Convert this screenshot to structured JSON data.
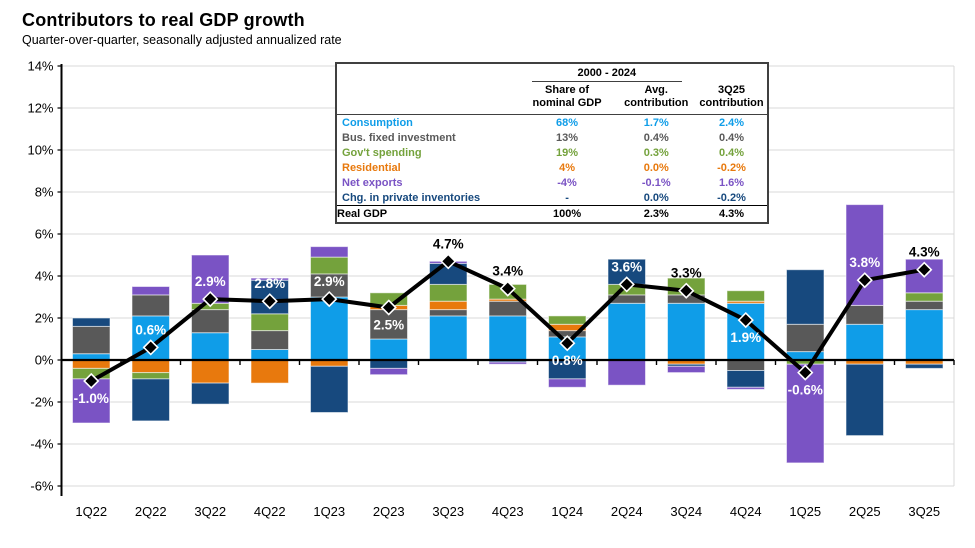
{
  "title": "Contributors to real GDP growth",
  "subtitle": "Quarter-over-quarter, seasonally adjusted annualized rate",
  "colors": {
    "consumption": "#0F9DE8",
    "bus_fixed": "#595959",
    "residential": "#E8790D",
    "govt": "#74A23C",
    "inventories": "#17497E",
    "net_exports": "#7A53C4",
    "gdp_line": "#000000",
    "gridline": "#D9D9D9",
    "axis": "#000000",
    "label_white": "#FFFFFF",
    "label_black": "#000000"
  },
  "table": {
    "group_header": "2000 - 2024",
    "col_headers": [
      "Share of\nnominal GDP",
      "Avg.\ncontribution",
      "3Q25\ncontribution"
    ],
    "rows": [
      {
        "label": "Consumption",
        "series": "consumption",
        "share": "68%",
        "avg": "1.7%",
        "q3": "2.4%"
      },
      {
        "label": "Bus. fixed investment",
        "series": "bus_fixed",
        "share": "13%",
        "avg": "0.4%",
        "q3": "0.4%"
      },
      {
        "label": "Gov't spending",
        "series": "govt",
        "share": "19%",
        "avg": "0.3%",
        "q3": "0.4%"
      },
      {
        "label": "Residential",
        "series": "residential",
        "share": "4%",
        "avg": "0.0%",
        "q3": "-0.2%"
      },
      {
        "label": "Net exports",
        "series": "net_exports",
        "share": "-4%",
        "avg": "-0.1%",
        "q3": "1.6%"
      },
      {
        "label": "Chg. in private inventories",
        "series": "inventories",
        "share": "-",
        "avg": "0.0%",
        "q3": "-0.2%"
      }
    ],
    "total_row": {
      "label": "Real GDP",
      "share": "100%",
      "avg": "2.3%",
      "q3": "4.3%"
    }
  },
  "chart_data": {
    "type": "bar",
    "subtype": "stacked-bars-with-line",
    "title": "Contributors to real GDP growth",
    "xlabel": "",
    "ylabel": "",
    "ylim": [
      -6,
      14
    ],
    "ytick_step": 2,
    "grid": true,
    "ytick_labels": [
      "14%",
      "12%",
      "10%",
      "8%",
      "6%",
      "4%",
      "2%",
      "0%",
      "-2%",
      "-4%",
      "-6%"
    ],
    "categories": [
      "1Q22",
      "2Q22",
      "3Q22",
      "4Q22",
      "1Q23",
      "2Q23",
      "3Q23",
      "4Q23",
      "1Q24",
      "2Q24",
      "3Q24",
      "4Q24",
      "1Q25",
      "2Q25",
      "3Q25"
    ],
    "series": [
      {
        "name": "Consumption",
        "key": "consumption",
        "values": [
          0.3,
          2.1,
          1.3,
          0.5,
          3.0,
          1.0,
          2.1,
          2.1,
          1.1,
          2.7,
          2.7,
          2.7,
          0.4,
          1.7,
          2.4
        ]
      },
      {
        "name": "Bus. fixed investment",
        "key": "bus_fixed",
        "values": [
          1.3,
          1.0,
          1.1,
          0.9,
          1.1,
          1.4,
          0.3,
          0.7,
          0.3,
          0.4,
          0.4,
          -0.5,
          1.3,
          0.9,
          0.4
        ]
      },
      {
        "name": "Residential",
        "key": "residential",
        "values": [
          -0.4,
          -0.6,
          -1.1,
          -1.1,
          -0.3,
          0.2,
          0.4,
          0.1,
          0.3,
          0.0,
          -0.2,
          0.1,
          0.0,
          -0.2,
          -0.2
        ]
      },
      {
        "name": "Gov't spending",
        "key": "govt",
        "values": [
          -0.5,
          -0.3,
          0.3,
          0.8,
          0.8,
          0.6,
          0.8,
          0.7,
          0.4,
          0.5,
          0.8,
          0.5,
          -0.2,
          0.0,
          0.4
        ]
      },
      {
        "name": "Chg. in private inventories",
        "key": "inventories",
        "values": [
          0.4,
          -2.0,
          -1.0,
          1.6,
          -2.2,
          -0.4,
          1.0,
          -0.1,
          -0.9,
          1.2,
          -0.1,
          -0.8,
          2.6,
          -3.4,
          -0.2
        ]
      },
      {
        "name": "Net exports",
        "key": "net_exports",
        "values": [
          -2.1,
          0.4,
          2.3,
          0.1,
          0.5,
          -0.3,
          0.1,
          -0.1,
          -0.4,
          -1.2,
          -0.3,
          -0.1,
          -4.7,
          4.8,
          1.6
        ]
      }
    ],
    "line_series": {
      "name": "Real GDP",
      "values": [
        -1.0,
        0.6,
        2.9,
        2.8,
        2.9,
        2.5,
        4.7,
        3.4,
        0.8,
        3.6,
        3.3,
        1.9,
        -0.6,
        3.8,
        4.3
      ],
      "labels": [
        "-1.0%",
        "0.6%",
        "2.9%",
        "2.8%",
        "2.9%",
        "2.5%",
        "4.7%",
        "3.4%",
        "0.8%",
        "3.6%",
        "3.3%",
        "1.9%",
        "-0.6%",
        "3.8%",
        "4.3%"
      ],
      "label_pos": [
        "below",
        "above",
        "above",
        "above",
        "above",
        "below",
        "above",
        "above",
        "below",
        "above",
        "above",
        "below",
        "below",
        "above",
        "above"
      ],
      "label_color": [
        "white",
        "white",
        "white",
        "white",
        "white",
        "white",
        "black",
        "black",
        "white",
        "white",
        "black",
        "white",
        "white",
        "white",
        "black"
      ]
    },
    "legend_position": "none (table acts as legend)"
  }
}
